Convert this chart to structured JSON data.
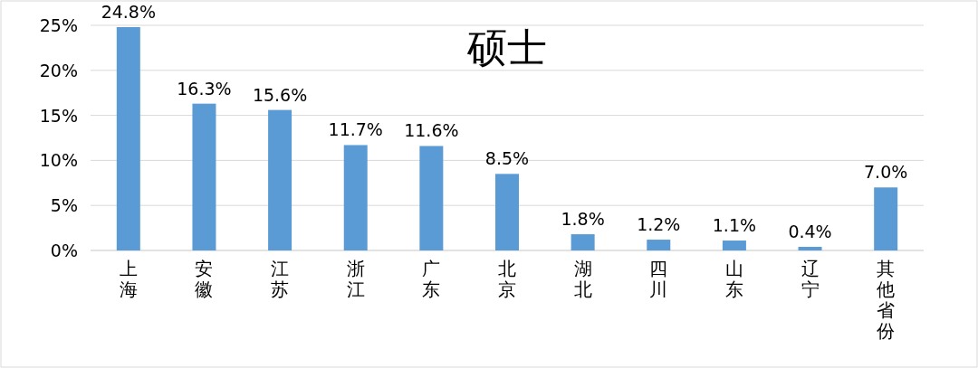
{
  "chart_data": {
    "type": "bar",
    "title": "硕士",
    "categories": [
      "上海",
      "安徽",
      "江苏",
      "浙江",
      "广东",
      "北京",
      "湖北",
      "四川",
      "山东",
      "辽宁",
      "其他省份"
    ],
    "values": [
      24.8,
      16.3,
      15.6,
      11.7,
      11.6,
      8.5,
      1.8,
      1.2,
      1.1,
      0.4,
      7.0
    ],
    "value_labels": [
      "24.8%",
      "16.3%",
      "15.6%",
      "11.7%",
      "11.6%",
      "8.5%",
      "1.8%",
      "1.2%",
      "1.1%",
      "0.4%",
      "7.0%"
    ],
    "color": "#5b9bd5",
    "ylim": [
      0,
      25
    ],
    "yticks": [
      {
        "value": 0,
        "label": "0%"
      },
      {
        "value": 5,
        "label": "5%"
      },
      {
        "value": 10,
        "label": "10%"
      },
      {
        "value": 15,
        "label": "15%"
      },
      {
        "value": 20,
        "label": "20%"
      },
      {
        "value": 25,
        "label": "25%"
      }
    ],
    "grid": "y"
  }
}
